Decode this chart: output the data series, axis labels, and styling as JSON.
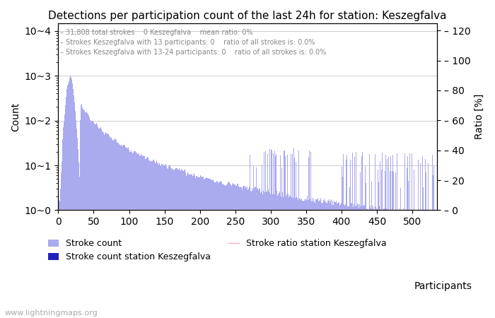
{
  "title": "Detections per participation count of the last 24h for station: Keszegfalva",
  "annotation_lines": [
    "31,808 total strokes    0 Keszegfalva    mean ratio: 0%",
    "Strokes Keszegfalva with 13 participants: 0    ratio of all strokes is: 0.0%",
    "Strokes Keszegfalva with 13-24 participants: 0    ratio of all strokes is: 0.0%"
  ],
  "xlabel": "Participants",
  "ylabel_left": "Count",
  "ylabel_right": "Ratio [%]",
  "xlim": [
    0,
    535
  ],
  "ylim_log_min": 1,
  "ylim_log_max": 15000,
  "ylim_right": [
    0,
    125
  ],
  "yticks_right": [
    0,
    20,
    40,
    60,
    80,
    100,
    120
  ],
  "yticks_left": [
    1,
    10,
    100,
    1000,
    10000
  ],
  "ytick_labels_left": [
    "10~0",
    "10~1",
    "10~2",
    "10~3",
    "10~4"
  ],
  "xticks": [
    0,
    50,
    100,
    150,
    200,
    250,
    300,
    350,
    400,
    450,
    500
  ],
  "bar_color_light": "#aaaaee",
  "bar_color_dark": "#2222bb",
  "ratio_line_color": "#ffaacc",
  "background_color": "#ffffff",
  "grid_color": "#cccccc",
  "legend_labels": [
    "Stroke count",
    "Stroke count station Keszegfalva",
    "Stroke ratio station Keszegfalva"
  ],
  "watermark": "www.lightningmaps.org",
  "max_participants": 530
}
